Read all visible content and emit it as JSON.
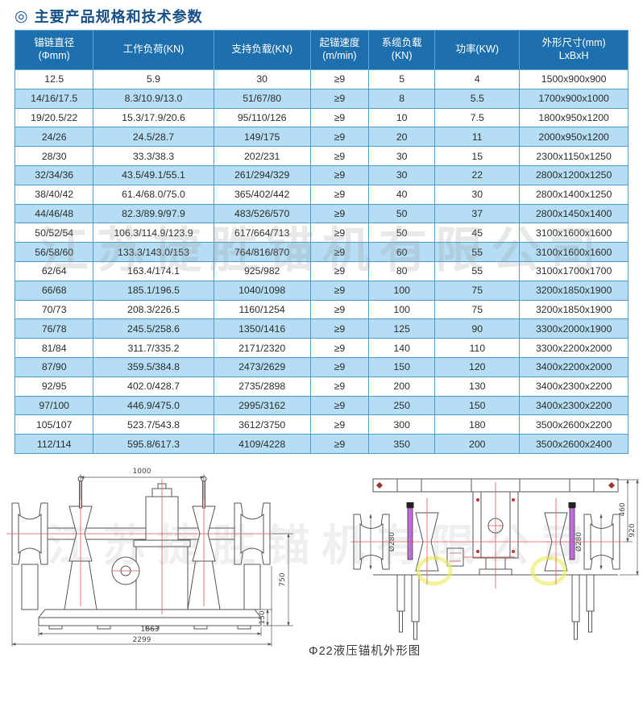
{
  "page": {
    "title": "主要产品规格和技术参数",
    "title_icon": "◎"
  },
  "watermark": "江苏捷胜锚机有限公司",
  "colors": {
    "header_bg": "#1d70ad",
    "row_alt": "#b5ddf4",
    "table_border": "#4a9cd2",
    "title_text": "#174f87",
    "centerline_red": "#e25555",
    "brake_purple": "#c36ae0",
    "highlight_yellow": "#ecec66"
  },
  "table": {
    "headers": [
      "锚链直径\n(Φmm)",
      "工作负荷(KN)",
      "支持负载(KN)",
      "起锚速度\n(m/min)",
      "系缆负载\n(KN)",
      "功率(KW)",
      "外形尺寸(mm)\nLxBxH"
    ],
    "rows": [
      [
        "12.5",
        "5.9",
        "30",
        "≥9",
        "5",
        "4",
        "1500x900x900"
      ],
      [
        "14/16/17.5",
        "8.3/10.9/13.0",
        "51/67/80",
        "≥9",
        "8",
        "5.5",
        "1700x900x1000"
      ],
      [
        "19/20.5/22",
        "15.3/17.9/20.6",
        "95/110/126",
        "≥9",
        "10",
        "7.5",
        "1800x950x1200"
      ],
      [
        "24/26",
        "24.5/28.7",
        "149/175",
        "≥9",
        "20",
        "11",
        "2000x950x1200"
      ],
      [
        "28/30",
        "33.3/38.3",
        "202/231",
        "≥9",
        "30",
        "15",
        "2300x1150x1250"
      ],
      [
        "32/34/36",
        "43.5/49.1/55.1",
        "261/294/329",
        "≥9",
        "30",
        "22",
        "2800x1200x1250"
      ],
      [
        "38/40/42",
        "61.4/68.0/75.0",
        "365/402/442",
        "≥9",
        "40",
        "30",
        "2800x1400x1250"
      ],
      [
        "44/46/48",
        "82.3/89.9/97.9",
        "483/526/570",
        "≥9",
        "50",
        "37",
        "2800x1450x1400"
      ],
      [
        "50/52/54",
        "106.3/114.9/123.9",
        "617/664/713",
        "≥9",
        "50",
        "45",
        "3100x1600x1600"
      ],
      [
        "56/58/60",
        "133.3/143.0/153",
        "764/816/870",
        "≥9",
        "60",
        "55",
        "3100x1600x1600"
      ],
      [
        "62/64",
        "163.4/174.1",
        "925/982",
        "≥9",
        "80",
        "55",
        "3100x1700x1700"
      ],
      [
        "66/68",
        "185.1/196.5",
        "1040/1098",
        "≥9",
        "100",
        "75",
        "3200x1850x1900"
      ],
      [
        "70/73",
        "208.3/226.5",
        "1160/1254",
        "≥9",
        "100",
        "75",
        "3200x1850x1900"
      ],
      [
        "76/78",
        "245.5/258.6",
        "1350/1416",
        "≥9",
        "125",
        "90",
        "3300x2000x1900"
      ],
      [
        "81/84",
        "311.7/335.2",
        "2171/2320",
        "≥9",
        "140",
        "110",
        "3300x2200x2000"
      ],
      [
        "87/90",
        "359.5/384.8",
        "2473/2629",
        "≥9",
        "150",
        "120",
        "3400x2200x2000"
      ],
      [
        "92/95",
        "402.0/428.7",
        "2735/2898",
        "≥9",
        "200",
        "130",
        "3400x2300x2200"
      ],
      [
        "97/100",
        "446.9/475.0",
        "2995/3162",
        "≥9",
        "250",
        "150",
        "3400x2300x2200"
      ],
      [
        "105/107",
        "523.7/543.8",
        "3612/3750",
        "≥9",
        "300",
        "180",
        "3500x2600x2200"
      ],
      [
        "112/114",
        "595.8/617.3",
        "4109/4228",
        "≥9",
        "350",
        "200",
        "3500x2600x2400"
      ]
    ]
  },
  "drawings": {
    "caption": "Φ22液压锚机外形图",
    "front_view": {
      "dim_top_width": "1000",
      "dim_height": "750",
      "dim_base_height": "150",
      "dim_base_width": "1863",
      "dim_overall_width": "2299"
    },
    "side_view": {
      "dim_drum_diameter_left": "Ø280",
      "dim_drum_diameter_right": "Ø280",
      "dim_upper_height": "460",
      "dim_overall_height": "920"
    }
  }
}
